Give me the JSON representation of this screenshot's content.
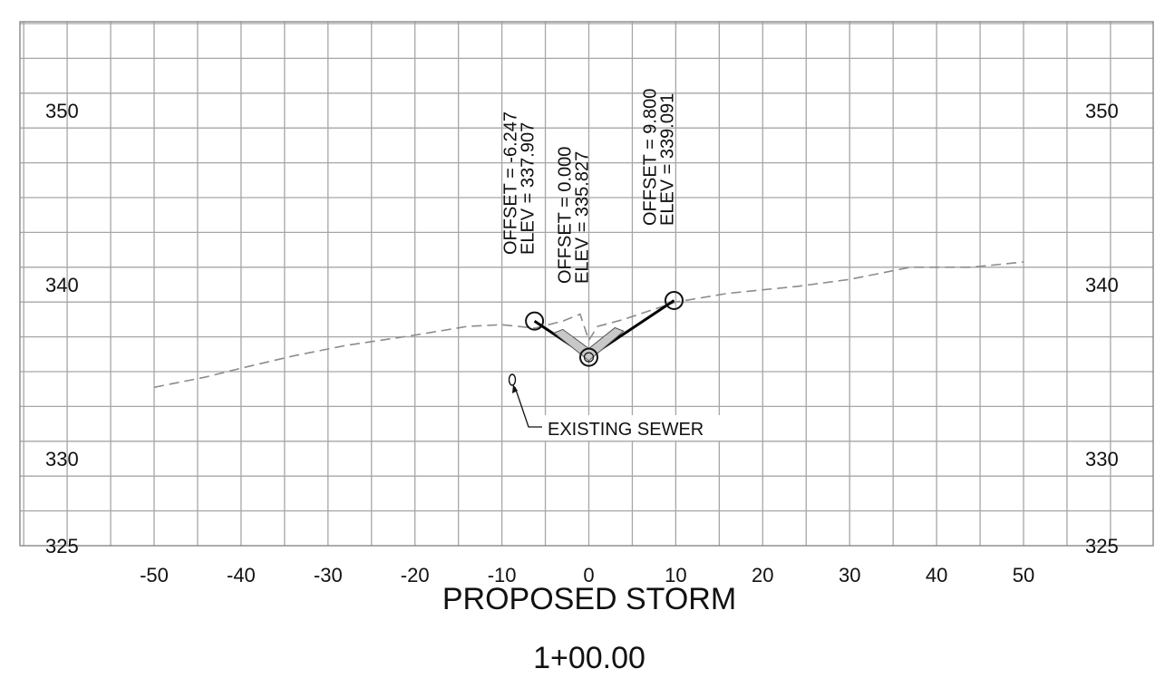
{
  "chart_data": {
    "type": "line",
    "title": "PROPOSED STORM",
    "subtitle": "1+00.00",
    "xlabel": "",
    "ylabel": "",
    "xlim": [
      -50,
      50
    ],
    "ylim": [
      325,
      355
    ],
    "grid": true,
    "x_ticks": [
      -50,
      -40,
      -30,
      -20,
      -10,
      0,
      10,
      20,
      30,
      40,
      50
    ],
    "x_tick_labels": [
      "-50",
      "-40",
      "-30",
      "-20",
      "-10",
      "0",
      "10",
      "20",
      "30",
      "40",
      "50"
    ],
    "y_ticks_labeled": [
      325,
      330,
      340,
      350
    ],
    "y_tick_labels": [
      "325",
      "330",
      "340",
      "350"
    ],
    "series": [
      {
        "style": "dashed",
        "color": "#8c8c8c",
        "x": [
          -50,
          -44,
          -40,
          -34,
          -28,
          -20,
          -14,
          -10,
          -6.2,
          -3,
          -1,
          0,
          1,
          4,
          10,
          16,
          24,
          30,
          37,
          40,
          44,
          50
        ],
        "y": [
          334.1,
          334.7,
          335.2,
          335.9,
          336.5,
          337.1,
          337.6,
          337.7,
          337.5,
          337.9,
          338.3,
          336.8,
          337.6,
          338.0,
          339.0,
          339.5,
          339.9,
          340.3,
          341.0,
          341.0,
          341.0,
          341.3
        ]
      },
      {
        "style": "solid",
        "color": "#000000",
        "x": [
          -6.247,
          0.0,
          9.8
        ],
        "y": [
          337.907,
          335.827,
          339.091
        ]
      }
    ],
    "points": [
      {
        "offset_label": "OFFSET = -6.247",
        "elev_label": "ELEV =  337.907",
        "x": -6.247,
        "y": 337.907
      },
      {
        "offset_label": "OFFSET = 0.000",
        "elev_label": "ELEV =  335.827",
        "x": 0.0,
        "y": 335.827
      },
      {
        "offset_label": "OFFSET = 9.800",
        "elev_label": "ELEV =  339.091",
        "x": 9.8,
        "y": 339.091
      }
    ],
    "annotations": [
      {
        "text": "EXISTING SEWER",
        "x": -9,
        "y": 333.5
      }
    ]
  }
}
